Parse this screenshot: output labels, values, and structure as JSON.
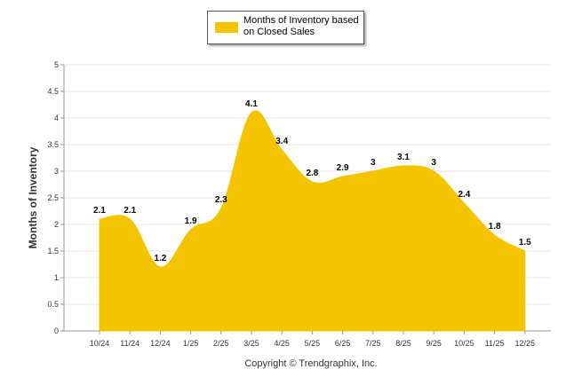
{
  "chart_data": {
    "type": "area",
    "categories": [
      "10/24",
      "11/24",
      "12/24",
      "1/25",
      "2/25",
      "3/25",
      "4/25",
      "5/25",
      "6/25",
      "7/25",
      "8/25",
      "9/25",
      "10/25",
      "11/25",
      "12/25"
    ],
    "series": [
      {
        "name": "Months of Inventory based on Closed Sales",
        "values": [
          2.1,
          2.1,
          1.2,
          1.9,
          2.3,
          4.1,
          3.4,
          2.8,
          2.9,
          3,
          3.1,
          3,
          2.4,
          1.8,
          1.5
        ]
      }
    ],
    "data_labels": [
      "2.1",
      "2.1",
      "1.2",
      "1.9",
      "2.3",
      "4.1",
      "3.4",
      "2.8",
      "2.9",
      "3",
      "3.1",
      "3",
      "2.4",
      "1.8",
      "1.5"
    ],
    "y_ticks": [
      "0",
      "0.5",
      "1",
      "1.5",
      "2",
      "2.5",
      "3",
      "3.5",
      "4",
      "4.5",
      "5"
    ],
    "ylim": [
      0,
      5
    ],
    "ylabel": "Months of Inventory",
    "xlabel": "",
    "legend_position": "top-center",
    "grid": true
  },
  "colors": {
    "area": "#f5c400",
    "grid": "#e6e6e6",
    "axis": "#999999"
  },
  "footer": {
    "copyright": "Copyright © Trendgraphix, Inc."
  }
}
